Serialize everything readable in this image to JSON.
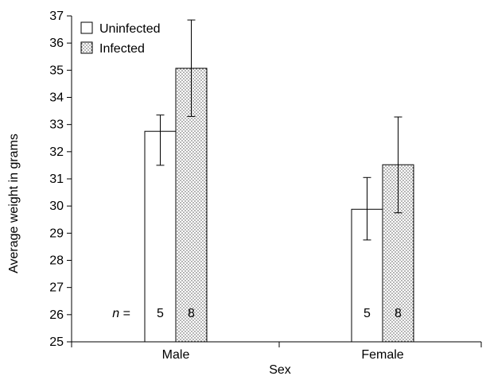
{
  "chart_data": {
    "type": "bar",
    "categories": [
      "Male",
      "Female"
    ],
    "series": [
      {
        "name": "Uninfected",
        "values": [
          32.75,
          29.88
        ],
        "error_low": [
          31.5,
          28.75
        ],
        "error_high": [
          33.35,
          31.05
        ],
        "n": [
          "5",
          "5"
        ],
        "fill": "#ffffff"
      },
      {
        "name": "Infected",
        "values": [
          35.07,
          31.52
        ],
        "error_low": [
          33.3,
          29.75
        ],
        "error_high": [
          36.85,
          33.28
        ],
        "n": [
          "8",
          "8"
        ],
        "fill": "dotted"
      }
    ],
    "xlabel": "Sex",
    "ylabel": "Average weight in grams",
    "ylim": [
      25,
      37
    ],
    "yticks": [
      25,
      26,
      27,
      28,
      29,
      30,
      31,
      32,
      33,
      34,
      35,
      36,
      37
    ],
    "n_prefix": "n =",
    "legend": "top-left",
    "grid": false
  }
}
